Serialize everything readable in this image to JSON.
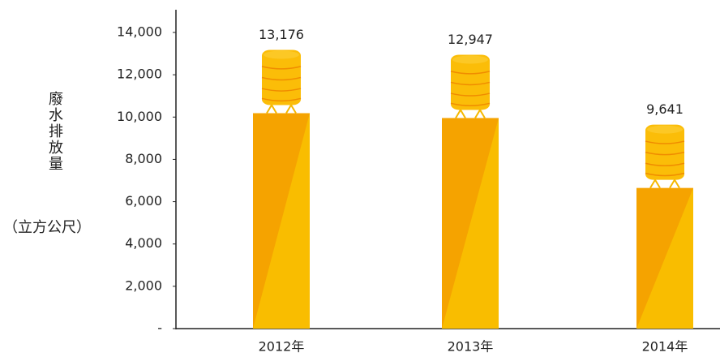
{
  "chart_data": {
    "type": "bar",
    "y_label": "廢水排放量",
    "y_unit": "（立方公尺）",
    "categories": [
      "2012年",
      "2013年",
      "2014年"
    ],
    "values": [
      13176,
      12947,
      9641
    ],
    "value_labels": [
      "13,176",
      "12,947",
      "9,641"
    ],
    "color": "#f5a300",
    "ylim": [
      0,
      14000
    ],
    "yticks": [
      {
        "value": 0,
        "label": "-"
      },
      {
        "value": 2000,
        "label": "2,000"
      },
      {
        "value": 4000,
        "label": "4,000"
      },
      {
        "value": 6000,
        "label": "6,000"
      },
      {
        "value": 8000,
        "label": "8,000"
      },
      {
        "value": 10000,
        "label": "10,000"
      },
      {
        "value": 12000,
        "label": "12,000"
      },
      {
        "value": 14000,
        "label": "14,000"
      }
    ],
    "grid": false
  }
}
